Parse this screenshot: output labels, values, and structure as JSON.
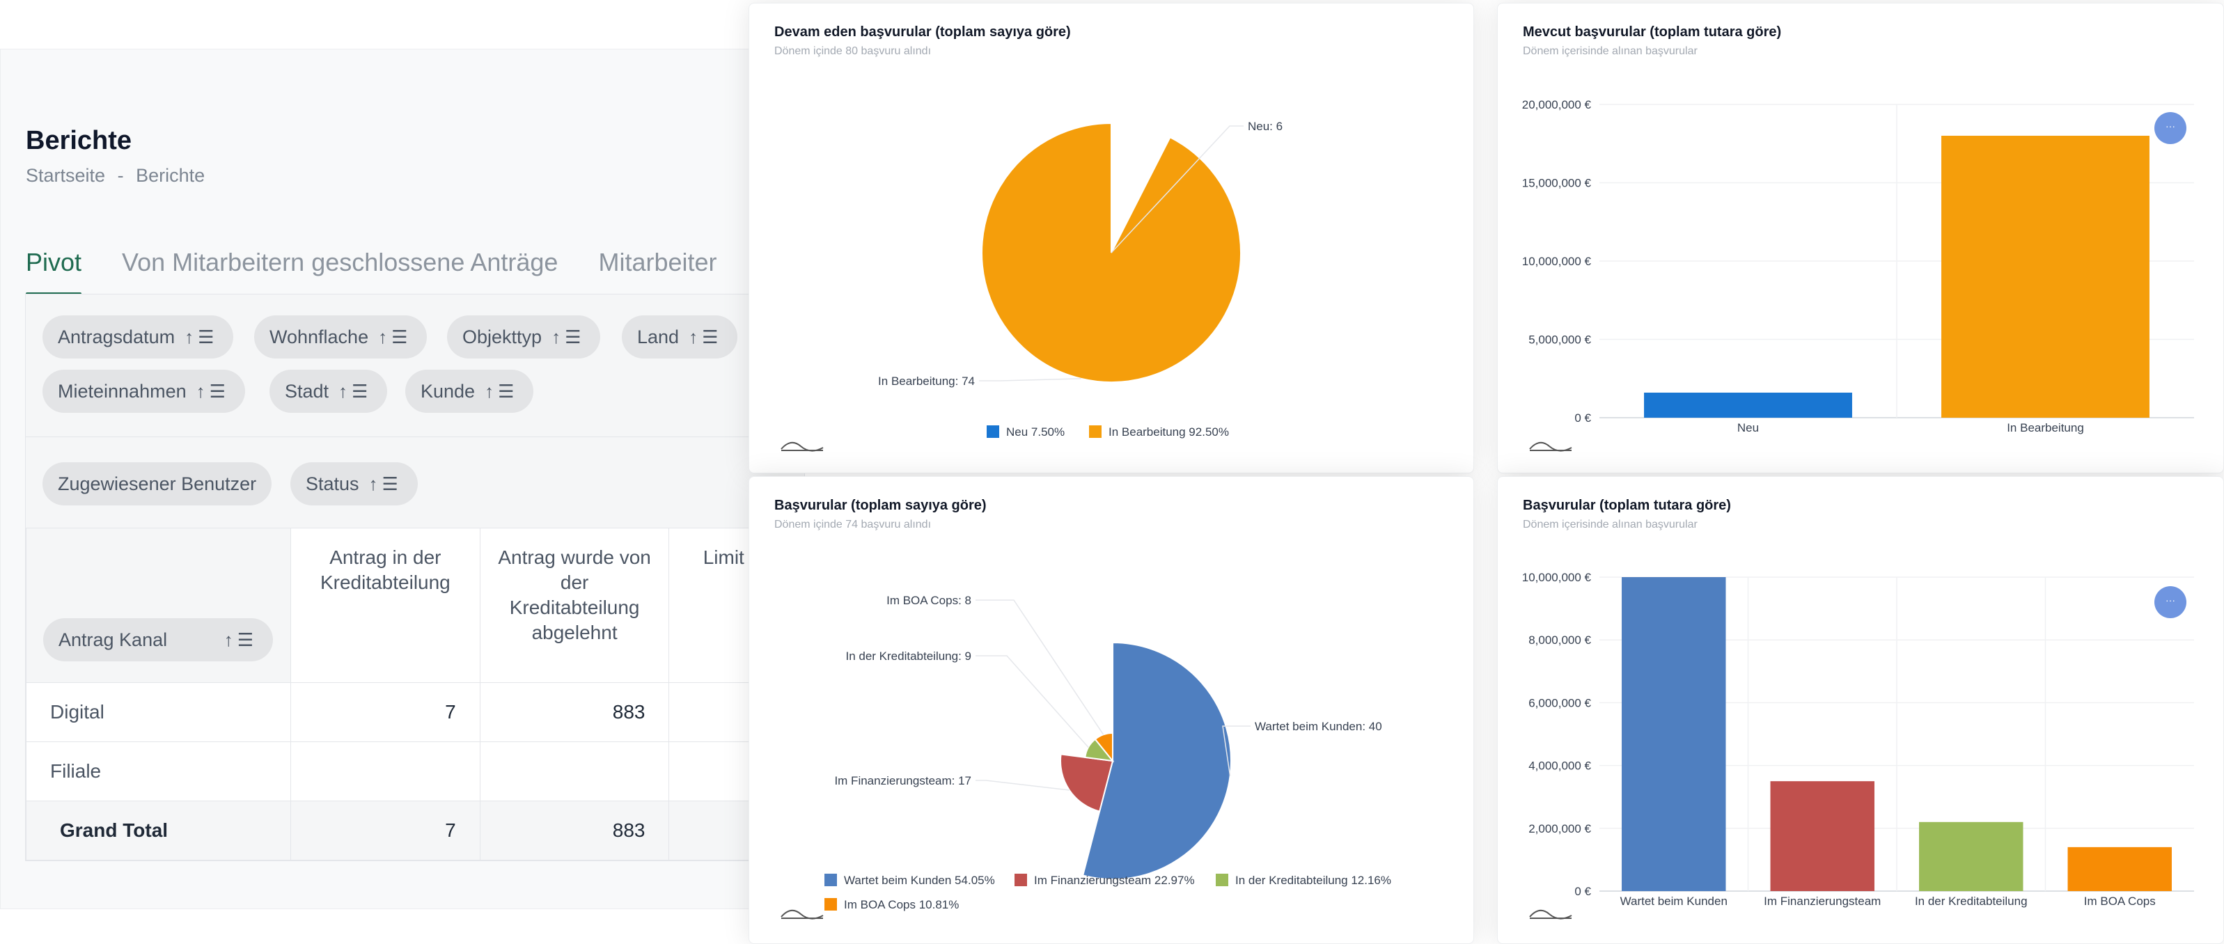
{
  "page": {
    "title": "Berichte",
    "breadcrumb": {
      "home": "Startseite",
      "sep": "-",
      "current": "Berichte"
    },
    "tabs": [
      "Pivot",
      "Von Mitarbeitern geschlossene Anträge",
      "Mitarbeiter"
    ]
  },
  "pivot": {
    "filter_chips": [
      "Antragsdatum",
      "Wohnflache",
      "Objekttyp",
      "Land",
      "Mieteinnahmen",
      "Stadt",
      "Kunde"
    ],
    "column_chips": [
      "Zugewiesener Benutzer",
      "Status"
    ],
    "row_chip": "Antrag Kanal",
    "col_headers": [
      "Antrag in der Kreditabteilung",
      "Antrag wurde von der Kreditabteilung abgelehnt",
      "Limit au"
    ],
    "rows": [
      {
        "label": "Digital",
        "values": [
          "7",
          "883"
        ]
      },
      {
        "label": "Filiale",
        "values": [
          "",
          ""
        ]
      }
    ],
    "total": {
      "label": "Grand Total",
      "values": [
        "7",
        "883"
      ]
    }
  },
  "cards": {
    "top_left": {
      "title": "Devam eden başvurular (toplam sayıya göre)",
      "subtitle": "Dönem içinde 80 başvuru alındı"
    },
    "top_right": {
      "title": "Mevcut başvurular (toplam tutara göre)",
      "subtitle": "Dönem içerisinde alınan başvurular"
    },
    "bottom_left": {
      "title": "Başvurular (toplam sayıya göre)",
      "subtitle": "Dönem içinde 74 başvuru alındı"
    },
    "bottom_right": {
      "title": "Başvurular (toplam tutara göre)",
      "subtitle": "Dönem içerisinde alınan başvurular"
    }
  },
  "colors": {
    "blue": "#1976d2",
    "orange": "#f59e0b",
    "steel": "#4f7fc0",
    "red": "#c0504d",
    "green": "#9bbb59",
    "amber": "#f78c05",
    "accent": "#1f6b50"
  },
  "chart_data": [
    {
      "type": "pie",
      "title": "Devam eden başvurular (toplam sayıya göre)",
      "slices": [
        {
          "name": "Neu",
          "value": 6,
          "label": "Neu: 6",
          "legend": "Neu 7.50%",
          "color": "#1976d2"
        },
        {
          "name": "In Bearbeitung",
          "value": 74,
          "label": "In Bearbeitung: 74",
          "legend": "In Bearbeitung 92.50%",
          "color": "#f59e0b"
        }
      ]
    },
    {
      "type": "bar",
      "title": "Mevcut başvurular (toplam tutara göre)",
      "categories": [
        "Neu",
        "In Bearbeitung"
      ],
      "values": [
        1600000,
        18000000
      ],
      "colors": [
        "#1976d2",
        "#f59e0b"
      ],
      "ylim": [
        0,
        20000000
      ],
      "yticks": [
        "0 €",
        "5,000,000 €",
        "10,000,000 €",
        "15,000,000 €",
        "20,000,000 €"
      ]
    },
    {
      "type": "pie",
      "title": "Başvurular (toplam sayıya göre)",
      "slices": [
        {
          "name": "Wartet beim Kunden",
          "value": 40,
          "label": "Wartet beim Kunden: 40",
          "legend": "Wartet beim Kunden 54.05%",
          "color": "#4f7fc0"
        },
        {
          "name": "Im Finanzierungsteam",
          "value": 17,
          "label": "Im Finanzierungsteam: 17",
          "legend": "Im Finanzierungsteam 22.97%",
          "color": "#c0504d"
        },
        {
          "name": "In der Kreditabteilung",
          "value": 9,
          "label": "In der Kreditabteilung: 9",
          "legend": "In der Kreditabteilung 12.16%",
          "color": "#9bbb59"
        },
        {
          "name": "Im BOA Cops",
          "value": 8,
          "label": "Im BOA Cops: 8",
          "legend": "Im BOA Cops 10.81%",
          "color": "#f78c05"
        }
      ]
    },
    {
      "type": "bar",
      "title": "Başvurular (toplam tutara göre)",
      "categories": [
        "Wartet beim Kunden",
        "Im Finanzierungsteam",
        "In der Kreditabteilung",
        "Im BOA Cops"
      ],
      "values": [
        10000000,
        3500000,
        2200000,
        1400000
      ],
      "colors": [
        "#4f7fc0",
        "#c0504d",
        "#9bbb59",
        "#f78c05"
      ],
      "ylim": [
        0,
        10000000
      ],
      "yticks": [
        "0 €",
        "2,000,000 €",
        "4,000,000 €",
        "6,000,000 €",
        "8,000,000 €",
        "10,000,000 €"
      ]
    }
  ]
}
